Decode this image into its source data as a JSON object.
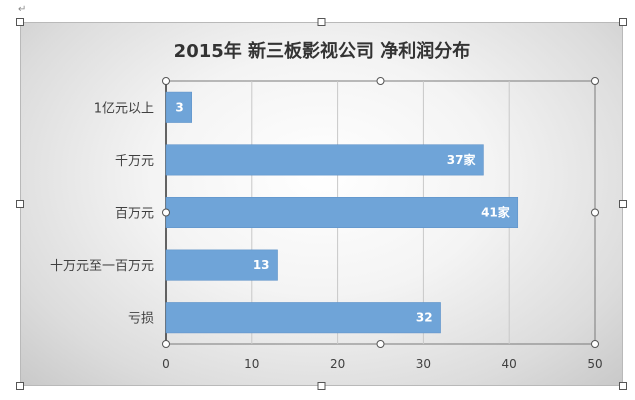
{
  "chart_data": {
    "type": "bar",
    "orientation": "horizontal",
    "title": "2015年  新三板影视公司  净利润分布",
    "categories": [
      "1亿元以上",
      "千万元",
      "百万元",
      "十万元至一百万元",
      "亏损"
    ],
    "values": [
      3,
      37,
      41,
      13,
      32
    ],
    "data_labels": [
      "3",
      "37家",
      "41家",
      "13",
      "32"
    ],
    "xlim": [
      0,
      50
    ],
    "x_ticks": [
      "0",
      "10",
      "20",
      "30",
      "40",
      "50"
    ],
    "grid": true,
    "legend": "none",
    "colors": {
      "bar": "#6fa4d8",
      "bar_edge": "#5b8fc6",
      "grid": "#c8c8c8",
      "axis": "#333333"
    }
  }
}
